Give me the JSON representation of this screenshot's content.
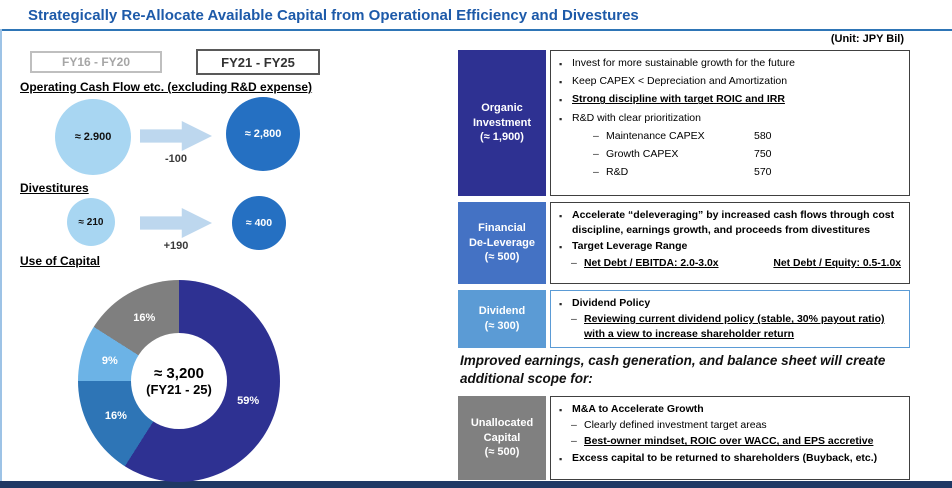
{
  "slide": {
    "title": "Strategically Re-Allocate Available Capital from Operational Efficiency and Divestures",
    "unit_note": "(Unit: JPY Bil)"
  },
  "period_tabs": [
    {
      "label": "FY16 - FY20"
    },
    {
      "label": "FY21 - FY25"
    }
  ],
  "flows": [
    {
      "heading": "Operating Cash Flow etc. (excluding  R&D expense)",
      "from": "≈ 2.900",
      "delta": "-100",
      "to": "≈ 2,800"
    },
    {
      "heading": "Divestitures",
      "from": "≈ 210",
      "delta": "+190",
      "to": "≈ 400"
    }
  ],
  "chart_data": {
    "type": "pie",
    "donut": true,
    "title": "Use of Capital",
    "unit": "JPY Bil",
    "center_label": [
      "≈ 3,200",
      "(FY21 - 25)"
    ],
    "start_angle_deg": 0,
    "direction": "clockwise",
    "labels": "percent-inside",
    "slices": [
      {
        "name": "Organic Investment",
        "pct": 59,
        "color": "#2e3192"
      },
      {
        "name": "Financial De-Leverage",
        "pct": 16,
        "color": "#2e75b6"
      },
      {
        "name": "Dividend",
        "pct": 9,
        "color": "#6cb3e6"
      },
      {
        "name": "Unallocated Capital",
        "pct": 16,
        "color": "#7f7f7f"
      }
    ]
  },
  "scope_note": "Improved earnings, cash generation, and balance sheet will create additional scope for:",
  "rows": [
    {
      "label_lines": [
        "Organic",
        "Investment",
        "(≈ 1,900)"
      ],
      "color": "#2e3192",
      "border": "#404040",
      "items": [
        {
          "type": "bullet",
          "text": "Invest for more sustainable growth for the future",
          "style": "plain"
        },
        {
          "type": "bullet",
          "text": "Keep CAPEX < Depreciation and Amortization",
          "style": "plain"
        },
        {
          "type": "bullet",
          "text": "Strong discipline with target ROIC and IRR",
          "style": "bold-underline"
        },
        {
          "type": "bullet",
          "text": "R&D with clear prioritization",
          "style": "plain"
        },
        {
          "type": "dash-kv",
          "text": "Maintenance CAPEX",
          "value": "580",
          "style": "plain"
        },
        {
          "type": "dash-kv",
          "text": "Growth CAPEX",
          "value": "750",
          "style": "plain"
        },
        {
          "type": "dash-kv",
          "text": "R&D",
          "value": "570",
          "style": "plain"
        }
      ]
    },
    {
      "label_lines": [
        "Financial",
        "De-Leverage",
        "(≈ 500)"
      ],
      "color": "#4472c4",
      "border": "#404040",
      "items": [
        {
          "type": "bullet",
          "text": "Accelerate “deleveraging” by increased cash flows through cost discipline, earnings growth, and proceeds from divestitures",
          "style": "bold"
        },
        {
          "type": "bullet",
          "text": "Target Leverage Range",
          "style": "bold"
        },
        {
          "type": "dash-pair",
          "parts": [
            "Net Debt / EBITDA: 2.0-3.0x",
            "Net Debt / Equity: 0.5-1.0x"
          ],
          "style": "bold-underline"
        }
      ]
    },
    {
      "label_lines": [
        "Dividend",
        "(≈ 300)"
      ],
      "color": "#5b9bd5",
      "border": "#5b9bd5",
      "items": [
        {
          "type": "bullet",
          "text": "Dividend Policy",
          "style": "bold"
        },
        {
          "type": "dash",
          "text": "Reviewing current dividend policy (stable, 30% payout ratio) with a view to increase shareholder return",
          "style": "bold-underline"
        }
      ]
    },
    {
      "label_lines": [
        "Unallocated",
        "Capital",
        "(≈ 500)"
      ],
      "color": "#808080",
      "border": "#404040",
      "items": [
        {
          "type": "bullet",
          "text": "M&A to Accelerate Growth",
          "style": "bold"
        },
        {
          "type": "dash",
          "text": "Clearly defined investment target areas",
          "style": "plain"
        },
        {
          "type": "dash",
          "text": "Best-owner mindset, ROIC over WACC, and EPS accretive",
          "style": "bold-underline"
        },
        {
          "type": "bullet",
          "text": "Excess capital to be returned to shareholders (Buyback, etc.)",
          "style": "bold"
        }
      ]
    }
  ]
}
